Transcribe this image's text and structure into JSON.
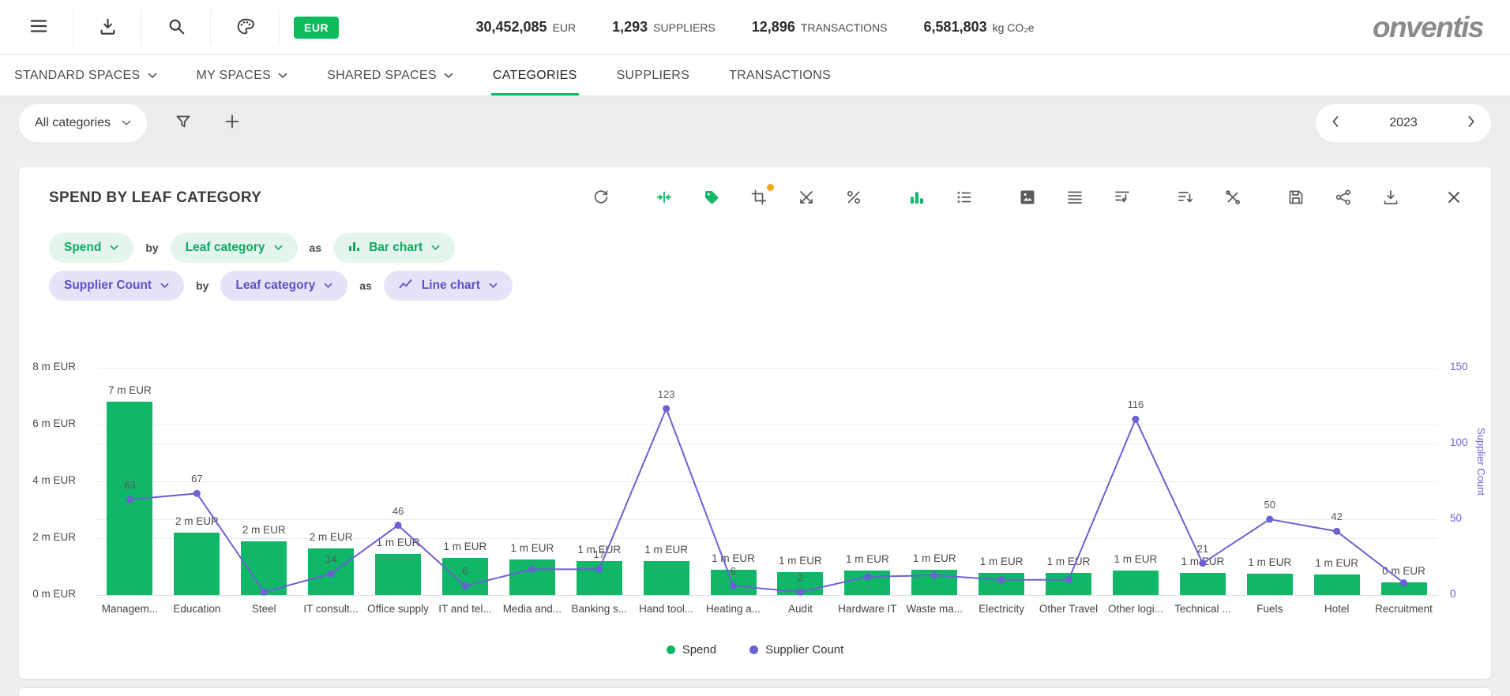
{
  "colors": {
    "green": "#10B768",
    "green_badge": "#0DBB5C",
    "green_light_bg": "#E4F5EC",
    "green_text": "#0EA863",
    "purple": "#6A61D2",
    "purple_light_bg": "#E6E3F8",
    "purple_text": "#5B50CE",
    "orange_badge": "#F2A71B",
    "page_bg": "#EFEFEF"
  },
  "topbar": {
    "icons": [
      "menu",
      "download",
      "search",
      "palette"
    ],
    "currency_badge": "EUR",
    "stats": [
      {
        "value": "30,452,085",
        "unit": "EUR"
      },
      {
        "value": "1,293",
        "unit": "SUPPLIERS"
      },
      {
        "value": "12,896",
        "unit": "TRANSACTIONS"
      },
      {
        "value": "6,581,803",
        "unit": "kg CO₂e"
      }
    ],
    "logo": "onventis"
  },
  "nav": {
    "tabs": [
      {
        "label": "STANDARD SPACES",
        "dropdown": true,
        "active": false
      },
      {
        "label": "MY SPACES",
        "dropdown": true,
        "active": false
      },
      {
        "label": "SHARED SPACES",
        "dropdown": true,
        "active": false
      },
      {
        "label": "CATEGORIES",
        "dropdown": false,
        "active": true
      },
      {
        "label": "SUPPLIERS",
        "dropdown": false,
        "active": false
      },
      {
        "label": "TRANSACTIONS",
        "dropdown": false,
        "active": false
      }
    ]
  },
  "filterbar": {
    "category_filter": "All categories",
    "icons": [
      "filter",
      "add"
    ],
    "year": "2023"
  },
  "widget": {
    "title": "SPEND BY LEAF CATEGORY",
    "toolbar_icons": [
      "refresh",
      "merge",
      "tag",
      "crop",
      "split",
      "percent",
      "bar-chart-view",
      "list-view",
      "image-export",
      "table-rows",
      "pivot",
      "sort",
      "tools",
      "save",
      "share",
      "download",
      "close"
    ],
    "config_rows": [
      {
        "metric": "Spend",
        "by": "by",
        "dimension": "Leaf category",
        "as": "as",
        "chart_type": "Bar chart"
      },
      {
        "metric": "Supplier Count",
        "by": "by",
        "dimension": "Leaf category",
        "as": "as",
        "chart_type": "Line chart"
      }
    ],
    "legend": [
      {
        "label": "Spend",
        "color": "#10B768"
      },
      {
        "label": "Supplier Count",
        "color": "#6A61D2"
      }
    ]
  },
  "chart_data": {
    "type": "bar+line",
    "title": "SPEND BY LEAF CATEGORY",
    "categories": [
      "Managem...",
      "Education",
      "Steel",
      "IT consult...",
      "Office supply",
      "IT and tel...",
      "Media and...",
      "Banking s...",
      "Hand tool...",
      "Heating a...",
      "Audit",
      "Hardware IT",
      "Waste ma...",
      "Electricity",
      "Other Travel",
      "Other logi...",
      "Technical ...",
      "Fuels",
      "Hotel",
      "Recruitment"
    ],
    "series": [
      {
        "name": "Spend",
        "type": "bar",
        "axis": "left",
        "unit": "m EUR",
        "values": [
          6.8,
          2.2,
          1.9,
          1.65,
          1.45,
          1.3,
          1.25,
          1.2,
          1.2,
          0.9,
          0.8,
          0.85,
          0.9,
          0.78,
          0.78,
          0.85,
          0.78,
          0.75,
          0.72,
          0.45
        ],
        "labels": [
          "7 m EUR",
          "2 m EUR",
          "2 m EUR",
          "2 m EUR",
          "1 m EUR",
          "1 m EUR",
          "1 m EUR",
          "1 m EUR",
          "1 m EUR",
          "1 m EUR",
          "1 m EUR",
          "1 m EUR",
          "1 m EUR",
          "1 m EUR",
          "1 m EUR",
          "1 m EUR",
          "1 m EUR",
          "1 m EUR",
          "1 m EUR",
          "0 m EUR"
        ]
      },
      {
        "name": "Supplier Count",
        "type": "line",
        "axis": "right",
        "values": [
          63,
          67,
          2,
          14,
          46,
          6,
          17,
          17,
          123,
          6,
          2,
          12,
          13,
          10,
          10,
          116,
          21,
          50,
          42,
          8
        ],
        "labels": [
          "63",
          "67",
          "",
          "14",
          "46",
          "6",
          "",
          "17",
          "123",
          "6",
          "2",
          "",
          "",
          "",
          "",
          "116",
          "21",
          "50",
          "42",
          ""
        ]
      }
    ],
    "left_axis": {
      "ticks": [
        0,
        2,
        4,
        6,
        8
      ],
      "tick_labels": [
        "0 m EUR",
        "2 m EUR",
        "4 m EUR",
        "6 m EUR",
        "8 m EUR"
      ],
      "max": 8
    },
    "right_axis": {
      "ticks": [
        0,
        50,
        100,
        150
      ],
      "max": 150,
      "title": "Supplier Count"
    },
    "legend": [
      "Spend",
      "Supplier Count"
    ],
    "legend_position": "bottom",
    "grid": true
  }
}
